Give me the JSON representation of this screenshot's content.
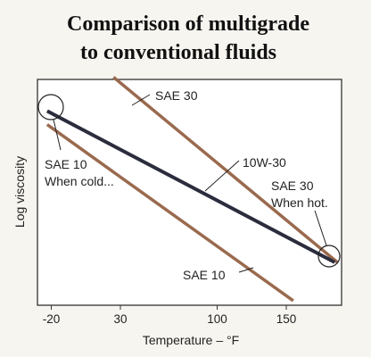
{
  "chart_data": {
    "type": "line",
    "title_line1": "Comparison of multigrade",
    "title_line2": "to conventional fluids",
    "xlabel": "Temperature – °F",
    "ylabel": "Log viscosity",
    "xticks": [
      "-20",
      "30",
      "100",
      "150"
    ],
    "xtick_values": [
      -20,
      30,
      100,
      150
    ],
    "xlim": [
      -30,
      190
    ],
    "ylim": [
      0,
      10
    ],
    "yticks_shown": false,
    "grid": false,
    "series": [
      {
        "name": "SAE 30",
        "x": [
          25,
          187
        ],
        "y": [
          10.1,
          1.9
        ],
        "color": "#9a6a4e"
      },
      {
        "name": "10W-30",
        "x": [
          -23,
          185
        ],
        "y": [
          8.6,
          1.9
        ],
        "color": "#2b2d3e"
      },
      {
        "name": "SAE 10",
        "x": [
          -23,
          155
        ],
        "y": [
          8.0,
          0.2
        ],
        "color": "#9a6a4e"
      }
    ],
    "annotations": {
      "sae30_top": "SAE 30",
      "w1030": "10W-30",
      "sae10_cold_line1": "SAE 10",
      "sae10_cold_line2": "When cold...",
      "sae30_hot_line1": "SAE 30",
      "sae30_hot_line2": "When hot.",
      "sae10_bottom": "SAE 10"
    }
  }
}
